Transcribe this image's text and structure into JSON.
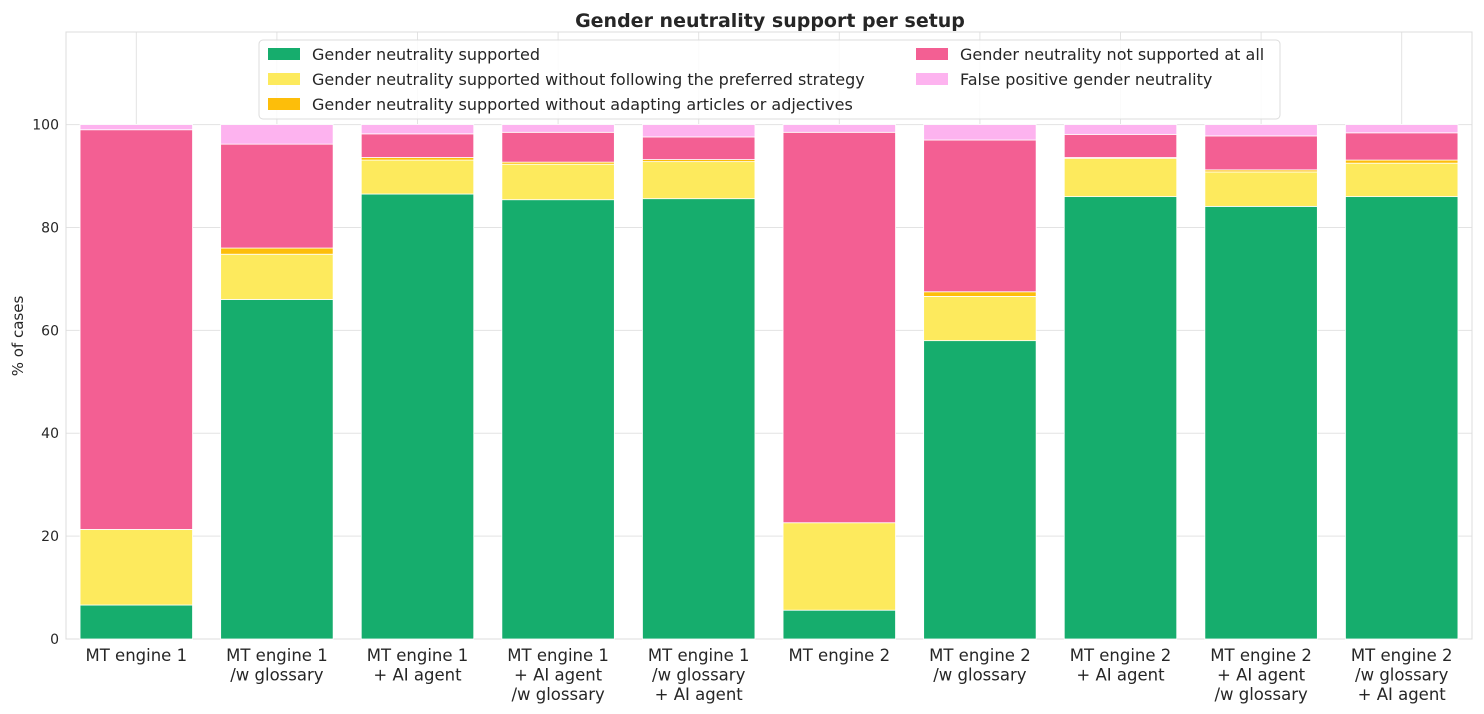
{
  "chart_data": {
    "type": "bar",
    "stacked": true,
    "title": "Gender neutrality support per setup",
    "xlabel": "",
    "ylabel": "% of cases",
    "ylim": [
      0,
      118
    ],
    "yticks": [
      0,
      20,
      40,
      60,
      80,
      100
    ],
    "grid": true,
    "legend_position": "top",
    "categories": [
      [
        "MT engine 1"
      ],
      [
        "MT engine 1",
        "/w glossary"
      ],
      [
        "MT engine 1",
        "+ AI agent"
      ],
      [
        "MT engine 1",
        "+ AI agent",
        "/w glossary"
      ],
      [
        "MT engine 1",
        "/w glossary",
        "+ AI agent"
      ],
      [
        "MT engine 2"
      ],
      [
        "MT engine 2",
        "/w glossary"
      ],
      [
        "MT engine 2",
        "+ AI agent"
      ],
      [
        "MT engine 2",
        "+ AI agent",
        "/w glossary"
      ],
      [
        "MT engine 2",
        "/w glossary",
        "+ AI agent"
      ]
    ],
    "series": [
      {
        "name": "Gender neutrality supported",
        "color": "#16ad6d",
        "values": [
          6.6,
          66.0,
          86.5,
          85.4,
          85.6,
          5.6,
          58.0,
          86.0,
          84.1,
          86.0
        ]
      },
      {
        "name": "Gender neutrality supported without following the preferred strategy",
        "color": "#fdea5d",
        "values": [
          14.7,
          8.8,
          6.6,
          6.9,
          7.2,
          17.0,
          8.6,
          7.4,
          6.7,
          6.5
        ]
      },
      {
        "name": "Gender neutrality supported without adapting articles or adjectives",
        "color": "#fdbe0a",
        "values": [
          0.0,
          1.2,
          0.5,
          0.4,
          0.4,
          0.0,
          0.9,
          0.2,
          0.4,
          0.6
        ]
      },
      {
        "name": "Gender neutrality not supported at all",
        "color": "#f35f93",
        "values": [
          77.7,
          20.2,
          4.6,
          5.8,
          4.4,
          75.9,
          29.5,
          4.5,
          6.6,
          5.3
        ]
      },
      {
        "name": "False positive gender neutrality",
        "color": "#fdb3ef",
        "values": [
          1.0,
          3.8,
          1.8,
          1.5,
          2.4,
          1.5,
          3.0,
          1.9,
          2.2,
          1.6
        ]
      }
    ]
  }
}
